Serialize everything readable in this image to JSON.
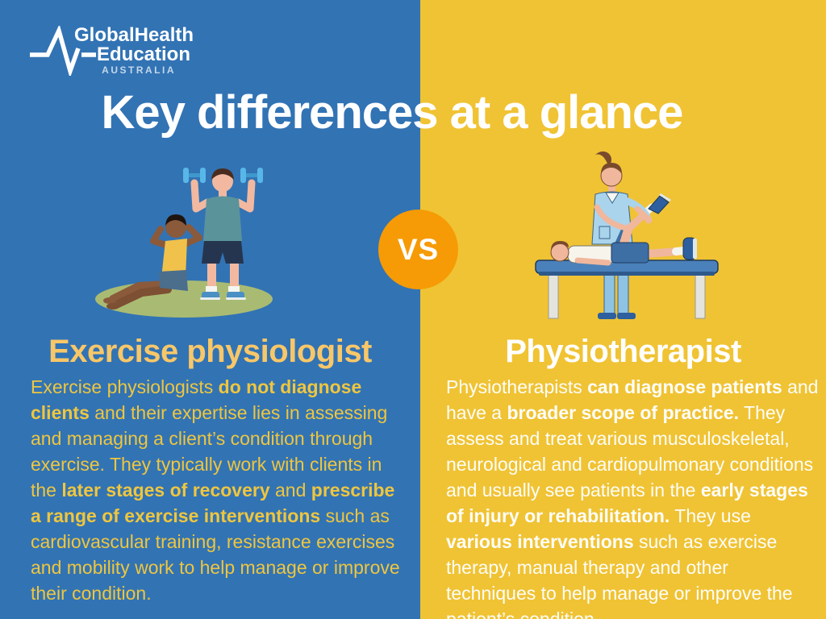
{
  "brand": {
    "line1": "GlobalHealth",
    "line2": "Education",
    "line3": "AUSTRALIA"
  },
  "title": "Key differences at a glance",
  "vs_badge": "VS",
  "icons": {
    "logo": "heartbeat-pulse-icon",
    "left_illustration": "people-exercising-illustration",
    "right_illustration": "physiotherapist-treating-patient-illustration"
  },
  "colors": {
    "left_background": "#3273b4",
    "right_background": "#f0c334",
    "vs_circle": "#f69b05",
    "left_heading": "#f8c769",
    "left_paragraph": "#eec63f",
    "right_text": "#ffffff"
  },
  "left": {
    "heading": "Exercise physiologist",
    "paragraph": [
      {
        "text": "Exercise physiologists ",
        "bold": false
      },
      {
        "text": "do not diagnose clients",
        "bold": true
      },
      {
        "text": " and their expertise lies in assessing and managing a client’s condition through exercise. They typically work with clients in the ",
        "bold": false
      },
      {
        "text": "later stages of recovery",
        "bold": true
      },
      {
        "text": " and ",
        "bold": false
      },
      {
        "text": "prescribe a range of exercise interventions",
        "bold": true
      },
      {
        "text": " such as cardiovascular training, resistance exercises and mobility work to help manage or improve their condition.",
        "bold": false
      }
    ]
  },
  "right": {
    "heading": "Physiotherapist",
    "paragraph": [
      {
        "text": "Physiotherapists ",
        "bold": false
      },
      {
        "text": "can diagnose patients",
        "bold": true
      },
      {
        "text": " and have a ",
        "bold": false
      },
      {
        "text": "broader scope of practice.",
        "bold": true
      },
      {
        "text": " They assess and treat various musculoskeletal, neurological and cardiopulmonary conditions and usually see patients in the ",
        "bold": false
      },
      {
        "text": "early stages of injury or rehabilitation.",
        "bold": true
      },
      {
        "text": " They use ",
        "bold": false
      },
      {
        "text": "various interventions",
        "bold": true
      },
      {
        "text": " such as exercise therapy, manual therapy and other techniques to help manage or improve the patient’s condition.",
        "bold": false
      }
    ]
  }
}
